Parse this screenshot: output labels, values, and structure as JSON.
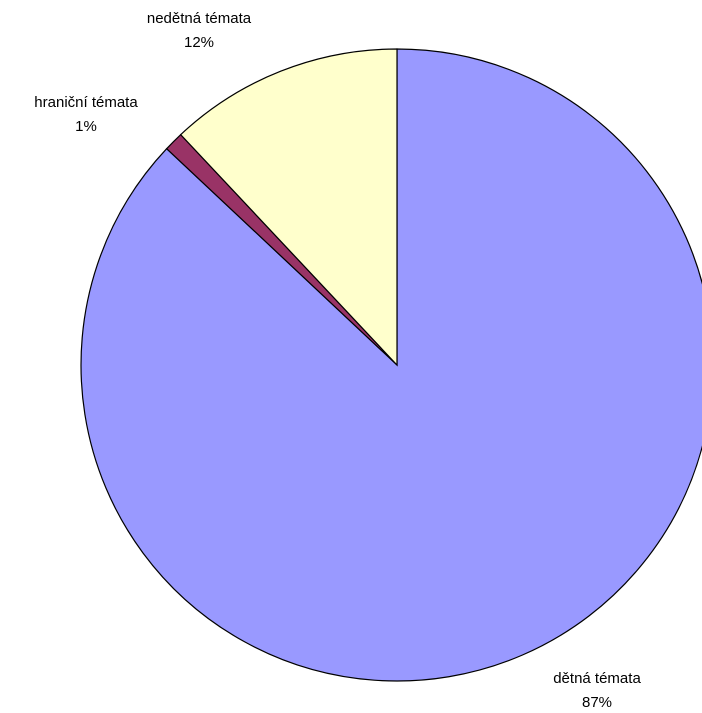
{
  "chart_data": {
    "type": "pie",
    "start_angle_deg": 0,
    "direction": "clockwise",
    "slices": [
      {
        "label": "dětná témata",
        "value": 87,
        "pct_label": "87%",
        "color": "#9999ff"
      },
      {
        "label": "hraniční témata",
        "value": 1,
        "pct_label": "1%",
        "color": "#993366"
      },
      {
        "label": "nedětná témata",
        "value": 12,
        "pct_label": "12%",
        "color": "#ffffcc"
      }
    ]
  }
}
